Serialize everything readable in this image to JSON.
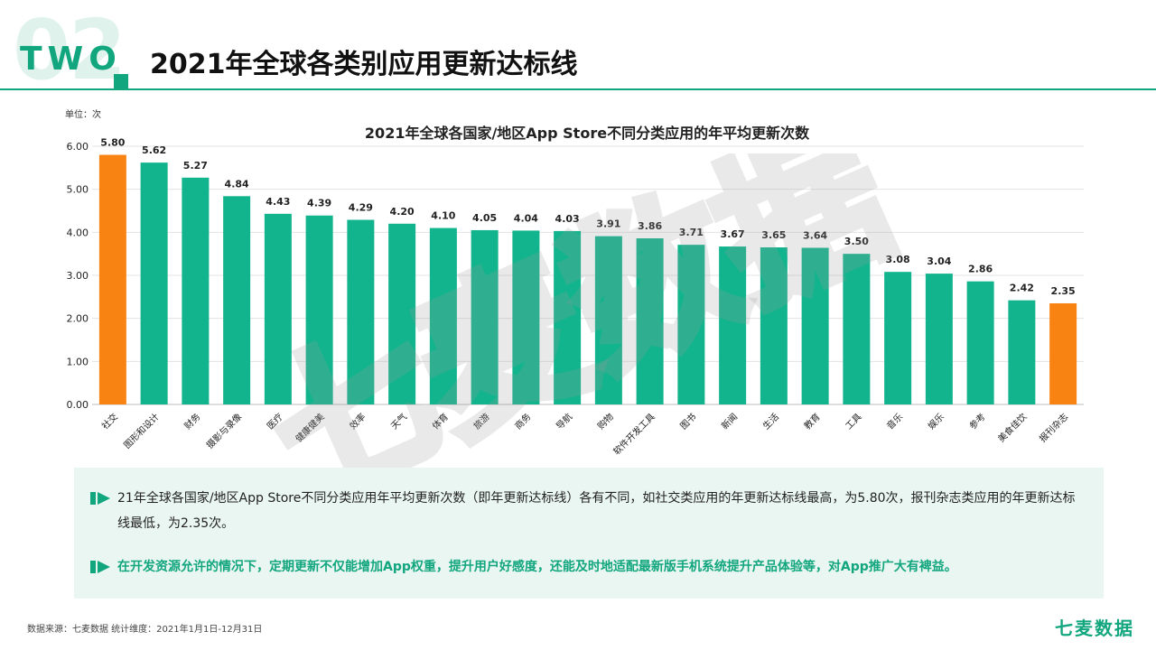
{
  "header": {
    "section_number": "02",
    "section_word": "TWO",
    "title": "2021年全球各类别应用更新达标线"
  },
  "chart_data": {
    "type": "bar",
    "title": "2021年全球各国家/地区App Store不同分类应用的年平均更新次数",
    "unit_label": "单位：次",
    "xlabel": "",
    "ylabel": "",
    "categories": [
      "社交",
      "图形和设计",
      "财务",
      "摄影与录像",
      "医疗",
      "健康健美",
      "效率",
      "天气",
      "体育",
      "旅游",
      "商务",
      "导航",
      "购物",
      "软件开发工具",
      "图书",
      "新闻",
      "生活",
      "教育",
      "工具",
      "音乐",
      "娱乐",
      "参考",
      "美食佳饮",
      "报刊杂志"
    ],
    "values": [
      5.8,
      5.62,
      5.27,
      4.84,
      4.43,
      4.39,
      4.29,
      4.2,
      4.1,
      4.05,
      4.04,
      4.03,
      3.91,
      3.86,
      3.71,
      3.67,
      3.65,
      3.64,
      3.5,
      3.08,
      3.04,
      2.86,
      2.42,
      2.35
    ],
    "value_labels": [
      "5.80",
      "5.62",
      "5.27",
      "4.84",
      "4.43",
      "4.39",
      "4.29",
      "4.20",
      "4.10",
      "4.05",
      "4.04",
      "4.03",
      "3.91",
      "3.86",
      "3.71",
      "3.67",
      "3.65",
      "3.64",
      "3.50",
      "3.08",
      "3.04",
      "2.86",
      "2.42",
      "2.35"
    ],
    "highlight_indices": [
      0,
      23
    ],
    "ylim": [
      0,
      6
    ],
    "yticks": [
      "0.00",
      "1.00",
      "2.00",
      "3.00",
      "4.00",
      "5.00",
      "6.00"
    ],
    "grid": true,
    "colors": {
      "bar": "#12b48e",
      "highlight": "#f98312",
      "grid": "#e3e3e3"
    }
  },
  "watermark": {
    "text": "七麦数据"
  },
  "summary": {
    "paragraph1": "21年全球各国家/地区App Store不同分类应用年平均更新次数（即年更新达标线）各有不同，如社交类应用的年更新达标线最高，为5.80次，报刊杂志类应用的年更新达标线最低，为2.35次。",
    "paragraph2": "在开发资源允许的情况下，定期更新不仅能增加App权重，提升用户好感度，还能及时地适配最新版手机系统提升产品体验等，对App推广大有裨益。"
  },
  "footer": {
    "source": "数据来源：七麦数据  统计维度：2021年1月1日-12月31日",
    "brand": "七麦数据"
  },
  "colors": {
    "accent": "#12a67f",
    "summary_bg": "#eaf6f1"
  }
}
